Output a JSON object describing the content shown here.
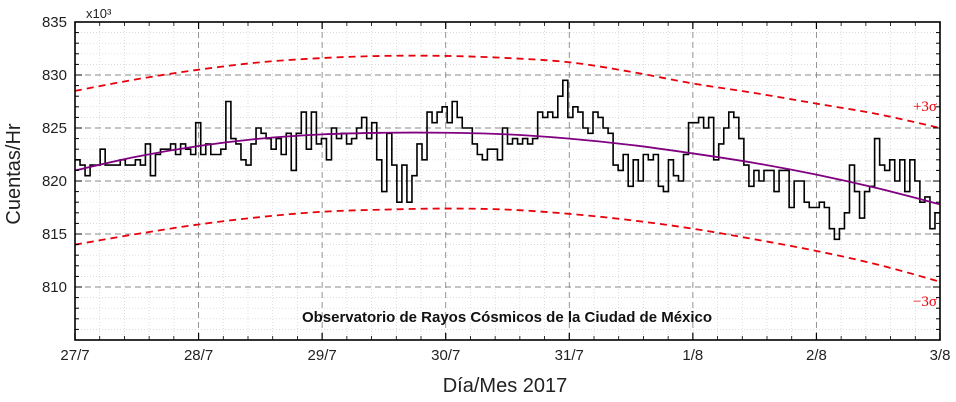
{
  "chart_data": {
    "type": "line",
    "xlabel": "Día/Mes 2017",
    "ylabel": "Cuentas/Hr",
    "y_multiplier": "x10³",
    "annotation": "Observatorio de Rayos Cósmicos de la Ciudad de México",
    "xlim": [
      0,
      7
    ],
    "ylim": [
      805,
      835
    ],
    "x_ticks": [
      {
        "value": 0,
        "label": "27/7"
      },
      {
        "value": 1,
        "label": "28/7"
      },
      {
        "value": 2,
        "label": "29/7"
      },
      {
        "value": 3,
        "label": "30/7"
      },
      {
        "value": 4,
        "label": "31/7"
      },
      {
        "value": 5,
        "label": "1/8"
      },
      {
        "value": 6,
        "label": "2/8"
      },
      {
        "value": 7,
        "label": "3/8"
      }
    ],
    "y_ticks": [
      810,
      815,
      820,
      825,
      830,
      835
    ],
    "grid": true,
    "series": [
      {
        "kind": "step",
        "color": "#000000",
        "x_step_days": 0.041667,
        "values": [
          822.0,
          821.5,
          820.5,
          821.5,
          821.5,
          823.0,
          821.5,
          821.5,
          821.5,
          822.0,
          821.5,
          821.5,
          822.0,
          821.5,
          823.5,
          820.5,
          822.5,
          823.0,
          823.0,
          823.5,
          822.5,
          823.5,
          823.0,
          822.5,
          825.5,
          822.5,
          823.5,
          822.5,
          822.5,
          823.0,
          827.5,
          824.0,
          823.5,
          822.0,
          821.5,
          823.5,
          825.0,
          824.5,
          824.0,
          823.0,
          824.0,
          822.5,
          824.5,
          821.0,
          824.5,
          826.5,
          823.0,
          826.5,
          823.5,
          824.0,
          822.0,
          825.0,
          824.0,
          824.5,
          823.5,
          824.0,
          825.0,
          826.0,
          824.0,
          825.5,
          822.0,
          819.0,
          824.5,
          821.5,
          818.0,
          821.5,
          818.0,
          820.5,
          823.5,
          822.0,
          826.5,
          825.5,
          826.5,
          827.0,
          825.5,
          827.5,
          826.0,
          825.0,
          825.0,
          823.5,
          822.5,
          822.0,
          823.0,
          823.0,
          822.0,
          825.0,
          823.5,
          824.0,
          823.5,
          824.0,
          823.5,
          824.0,
          826.5,
          826.0,
          826.5,
          826.0,
          828.0,
          829.5,
          826.0,
          827.0,
          826.5,
          825.0,
          824.5,
          826.5,
          826.0,
          825.0,
          824.5,
          821.5,
          821.0,
          822.5,
          819.5,
          822.0,
          820.0,
          822.5,
          822.0,
          822.5,
          819.5,
          819.0,
          822.0,
          820.5,
          820.0,
          822.5,
          825.5,
          825.5,
          826.0,
          825.0,
          826.0,
          822.0,
          823.5,
          825.0,
          826.5,
          826.0,
          824.0,
          821.5,
          819.5,
          821.0,
          820.0,
          821.0,
          821.0,
          819.0,
          821.0,
          821.0,
          817.5,
          820.0,
          820.0,
          818.0,
          817.5,
          817.5,
          818.0,
          817.5,
          815.5,
          814.5,
          815.5,
          817.0,
          821.5,
          819.0,
          816.5,
          819.0,
          819.5,
          824.0,
          821.5,
          821.0,
          822.0,
          820.0,
          822.0,
          819.0,
          822.0,
          820.0,
          818.0,
          818.5,
          815.5,
          817.0
        ]
      },
      {
        "kind": "fit",
        "color": "#800080",
        "x": [
          0,
          0.5,
          1,
          1.5,
          2,
          2.5,
          3,
          3.5,
          4,
          4.5,
          5,
          5.5,
          6,
          6.5,
          7
        ],
        "values": [
          821.0,
          822.3,
          823.3,
          824.0,
          824.4,
          824.55,
          824.55,
          824.4,
          824.0,
          823.4,
          822.6,
          821.7,
          820.6,
          819.3,
          817.8
        ]
      },
      {
        "name": "+3σ",
        "kind": "dashed",
        "color": "#e8000b",
        "x": [
          0,
          0.5,
          1,
          1.5,
          2,
          2.5,
          3,
          3.5,
          4,
          4.5,
          5,
          5.5,
          6,
          6.5,
          7
        ],
        "values": [
          828.5,
          829.6,
          830.5,
          831.2,
          831.6,
          831.8,
          831.8,
          831.6,
          831.2,
          830.3,
          829.2,
          828.3,
          827.3,
          826.3,
          825.0
        ]
      },
      {
        "name": "−3σ",
        "kind": "dashed",
        "color": "#e8000b",
        "x": [
          0,
          0.5,
          1,
          1.5,
          2,
          2.5,
          3,
          3.5,
          4,
          4.5,
          5,
          5.5,
          6,
          6.5,
          7
        ],
        "values": [
          814.0,
          815.0,
          815.9,
          816.6,
          817.1,
          817.3,
          817.4,
          817.3,
          816.9,
          816.3,
          815.5,
          814.5,
          813.4,
          812.1,
          810.5
        ]
      }
    ]
  }
}
